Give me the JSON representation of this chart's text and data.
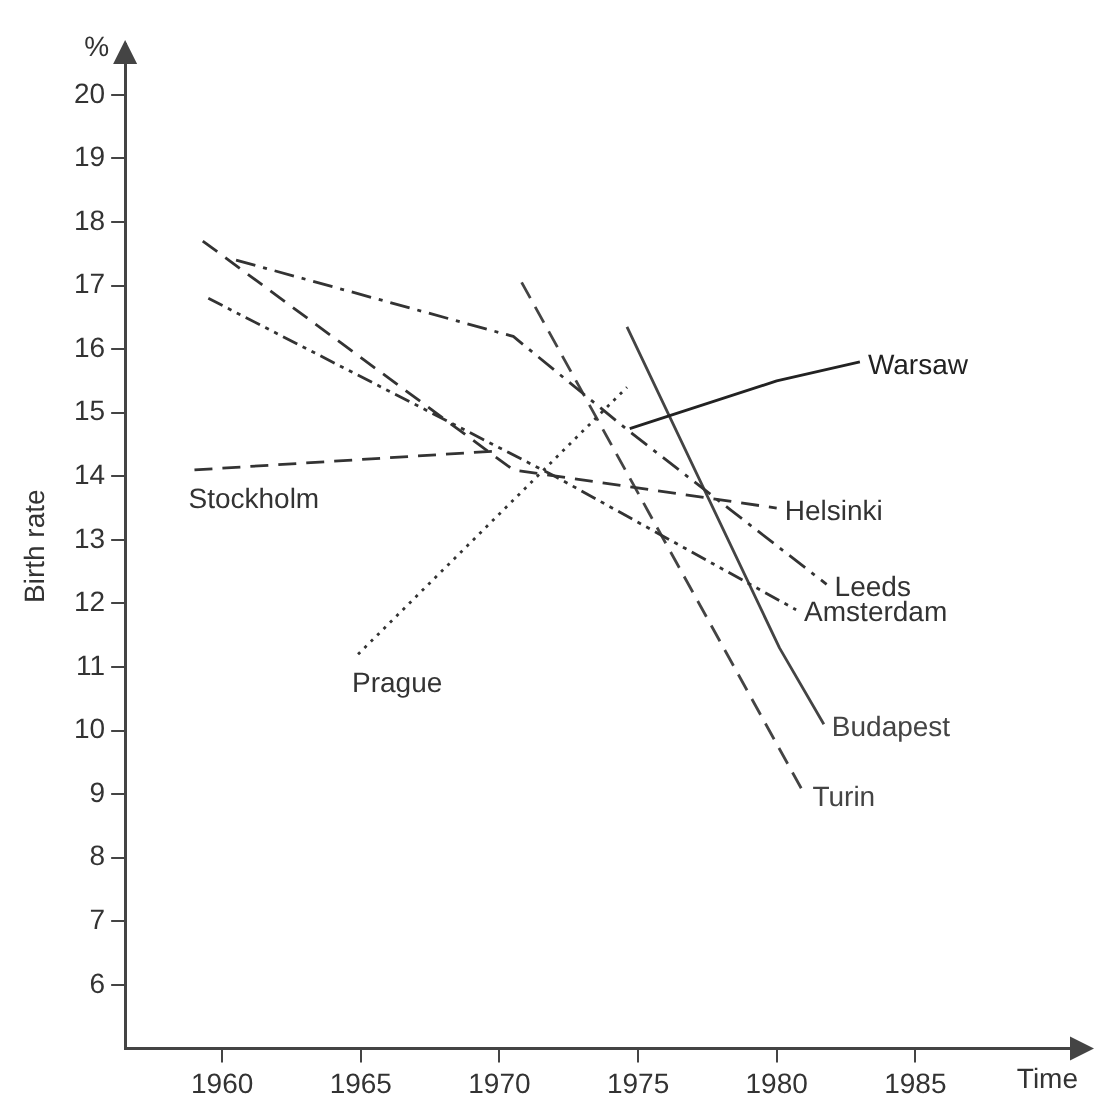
{
  "chart_data": {
    "type": "line",
    "xlabel": "Time",
    "ylabel": "Birth rate",
    "xlim": [
      1956.5,
      1991.3
    ],
    "ylim": [
      5,
      20.8
    ],
    "xticks": [
      1960,
      1965,
      1970,
      1975,
      1980,
      1985
    ],
    "yticks": [
      6,
      7,
      8,
      9,
      10,
      11,
      12,
      13,
      14,
      15,
      16,
      17,
      18,
      19,
      20
    ],
    "grid": false,
    "legend": false,
    "marker": "none",
    "series": [
      {
        "name": "Stockholm",
        "color": "#333333",
        "line_style": "dashed",
        "x": [
          1959,
          1970
        ],
        "values": [
          14.1,
          14.4
        ]
      },
      {
        "name": "Helsinki",
        "color": "#333333",
        "line_style": "dashed",
        "x": [
          1959.3,
          1970.5,
          1980
        ],
        "values": [
          17.7,
          14.1,
          13.5
        ]
      },
      {
        "name": "Leeds",
        "color": "#333333",
        "line_style": "dashdot",
        "x": [
          1960.5,
          1970.5,
          1974.7,
          1981.8
        ],
        "values": [
          17.4,
          16.2,
          14.7,
          12.3
        ]
      },
      {
        "name": "Amsterdam",
        "color": "#333333",
        "line_style": "dashdotdot",
        "x": [
          1959.5,
          1972,
          1980.7
        ],
        "values": [
          16.8,
          14,
          11.9
        ]
      },
      {
        "name": "Warsaw",
        "color": "#222222",
        "line_style": "solid",
        "x": [
          1974.7,
          1980,
          1983
        ],
        "values": [
          14.75,
          15.5,
          15.8
        ]
      },
      {
        "name": "Prague",
        "color": "#333333",
        "line_style": "dotted",
        "x": [
          1964.9,
          1974.6
        ],
        "values": [
          11.2,
          15.4
        ]
      },
      {
        "name": "Budapest",
        "color": "#444444",
        "line_style": "solid",
        "x": [
          1974.6,
          1980.1,
          1981.7
        ],
        "values": [
          16.35,
          11.3,
          10.1
        ]
      },
      {
        "name": "Turin",
        "color": "#444444",
        "line_style": "dashed",
        "x": [
          1970.8,
          1981
        ],
        "values": [
          17.05,
          9
        ]
      }
    ],
    "annotations": [
      "%"
    ]
  }
}
